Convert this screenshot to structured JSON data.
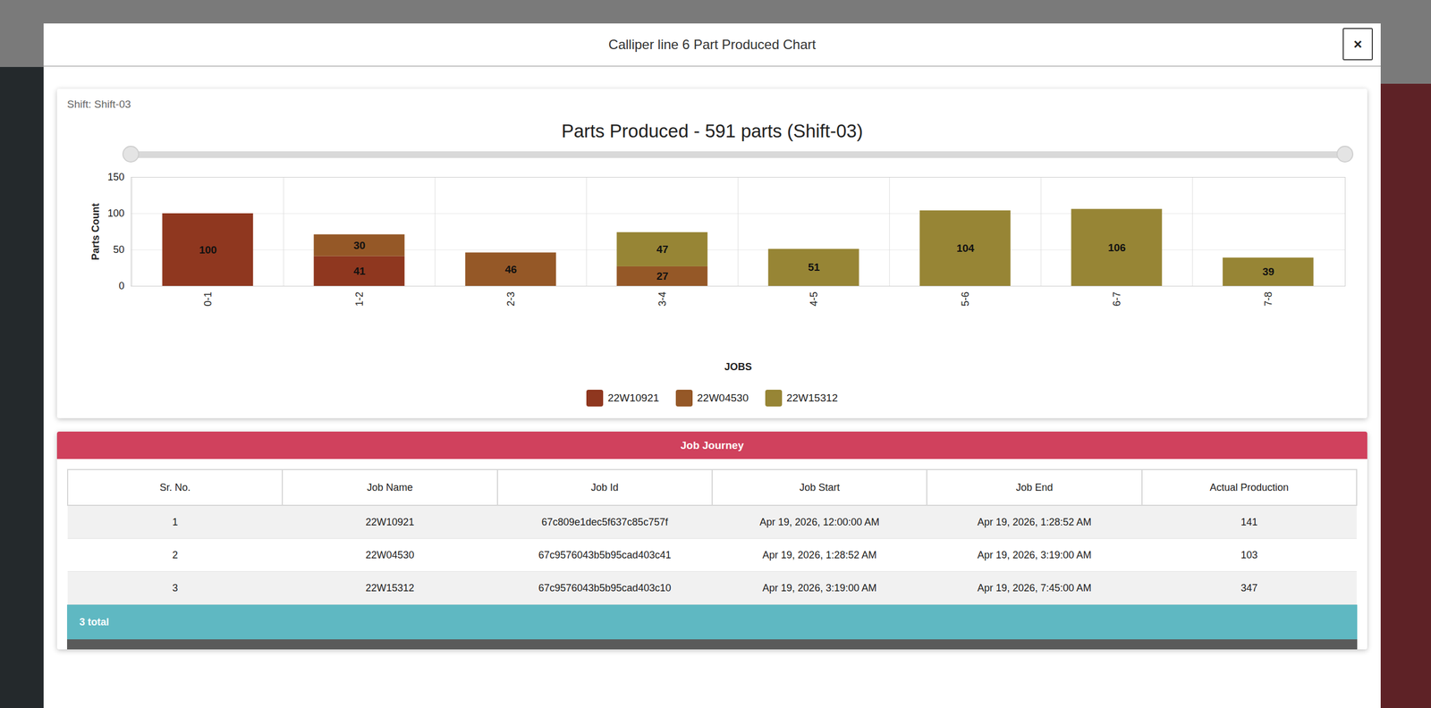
{
  "modal": {
    "title": "Calliper line 6 Part Produced Chart",
    "close": "×"
  },
  "chart_data": {
    "type": "bar",
    "subtitle": "Shift: Shift-03",
    "title": "Parts Produced - 591 parts (Shift-03)",
    "x_label": "JOBS",
    "y_label": "Parts Count",
    "categories": [
      "0-1",
      "1-2",
      "2-3",
      "3-4",
      "4-5",
      "5-6",
      "6-7",
      "7-8"
    ],
    "series": [
      {
        "name": "22W10921",
        "color": "#8f371f",
        "values": [
          100,
          41,
          null,
          null,
          null,
          null,
          null,
          null
        ]
      },
      {
        "name": "22W04530",
        "color": "#955827",
        "values": [
          null,
          30,
          46,
          27,
          null,
          null,
          null,
          null
        ]
      },
      {
        "name": "22W15312",
        "color": "#978535",
        "values": [
          null,
          null,
          null,
          47,
          51,
          104,
          106,
          39
        ]
      }
    ],
    "stacked": true,
    "data_labels": true,
    "ylim": [
      0,
      150
    ],
    "yticks": [
      0,
      50,
      100,
      150
    ],
    "grid": true,
    "legend": "bottom"
  },
  "table": {
    "title": "Job Journey",
    "columns": [
      "Sr. No.",
      "Job Name",
      "Job Id",
      "Job Start",
      "Job End",
      "Actual Production"
    ],
    "rows": [
      [
        1,
        "22W10921",
        "67c809e1dec5f637c85c757f",
        "Apr 19, 2026, 12:00:00 AM",
        "Apr 19, 2026, 1:28:52 AM",
        141
      ],
      [
        2,
        "22W04530",
        "67c9576043b5b95cad403c41",
        "Apr 19, 2026, 1:28:52 AM",
        "Apr 19, 2026, 3:19:00 AM",
        103
      ],
      [
        3,
        "22W15312",
        "67c9576043b5b95cad403c10",
        "Apr 19, 2026, 3:19:00 AM",
        "Apr 19, 2026, 7:45:00 AM",
        347
      ]
    ],
    "footer": "3 total"
  }
}
